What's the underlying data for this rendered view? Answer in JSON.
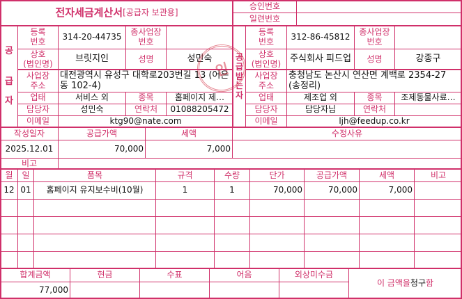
{
  "title": "전자세금계산서",
  "title_sub": "[공급자 보관용]",
  "approval_label": "승인번호",
  "approval_value": "",
  "serial_label": "일련번호",
  "serial_value": "",
  "supplier": {
    "side": [
      "공",
      "급",
      "자"
    ],
    "reg_label": "등록\n번호",
    "reg": "314-20-44735",
    "sub_label": "종사업장\n번호",
    "sub": "",
    "name_label": "상호\n(법인명)",
    "name": "브릿지인",
    "rep_label": "성명",
    "rep": "성민숙",
    "addr_label": "사업장\n주소",
    "addr": "대전광역시 유성구 대학로203번길 13 (어은동 102-4)",
    "type_label": "업태",
    "type": "서비스 외",
    "item_label": "종목",
    "item": "홈페이지 제…",
    "contact_label": "담당자",
    "contact": "성민숙",
    "phone_label": "연락처",
    "phone": "01088205472",
    "email_label": "이메일",
    "email": "ktg90@nate.com",
    "stamp": "인"
  },
  "buyer": {
    "side": [
      "공",
      "급",
      "받",
      "는",
      "자"
    ],
    "reg_label": "등록\n번호",
    "reg": "312-86-45812",
    "sub_label": "종사업장\n번호",
    "sub": "",
    "name_label": "상호\n(법인명)",
    "name": "주식회사 피드업",
    "rep_label": "성명",
    "rep": "강종구",
    "addr_label": "사업장\n주소",
    "addr": "충청남도 논산시 연산면 계백로 2354-27 (송정리)",
    "type_label": "업태",
    "type": "제조업 외",
    "item_label": "종목",
    "item": "조제동물사료…",
    "contact_label": "담당자",
    "contact": "담당자님",
    "phone_label": "연락처",
    "phone": "",
    "email_label": "이메일",
    "email": "ljh@feedup.co.kr"
  },
  "summary": {
    "date_label": "작성일자",
    "date": "2025.12.01",
    "supply_label": "공급가액",
    "supply": "70,000",
    "tax_label": "세액",
    "tax": "7,000",
    "reason_label": "수정사유",
    "reason": "",
    "note_label": "비고",
    "note": ""
  },
  "items": {
    "headers": [
      "월",
      "일",
      "품목",
      "규격",
      "수량",
      "단가",
      "공급가액",
      "세액",
      "비고"
    ],
    "rows": [
      [
        "12",
        "01",
        "홈페이지 유지보수비(10월)",
        "1",
        "1",
        "70,000",
        "70,000",
        "7,000",
        ""
      ]
    ]
  },
  "footer": {
    "headers": [
      "합계금액",
      "현금",
      "수표",
      "어음",
      "외상미수금"
    ],
    "values": [
      "77,000",
      "",
      "",
      "",
      ""
    ],
    "claim_pre": "이 금액을 ",
    "claim_word": "청구",
    "claim_post": "함"
  },
  "colors": {
    "border": "#d0306a",
    "stamp": "#d2283c"
  }
}
